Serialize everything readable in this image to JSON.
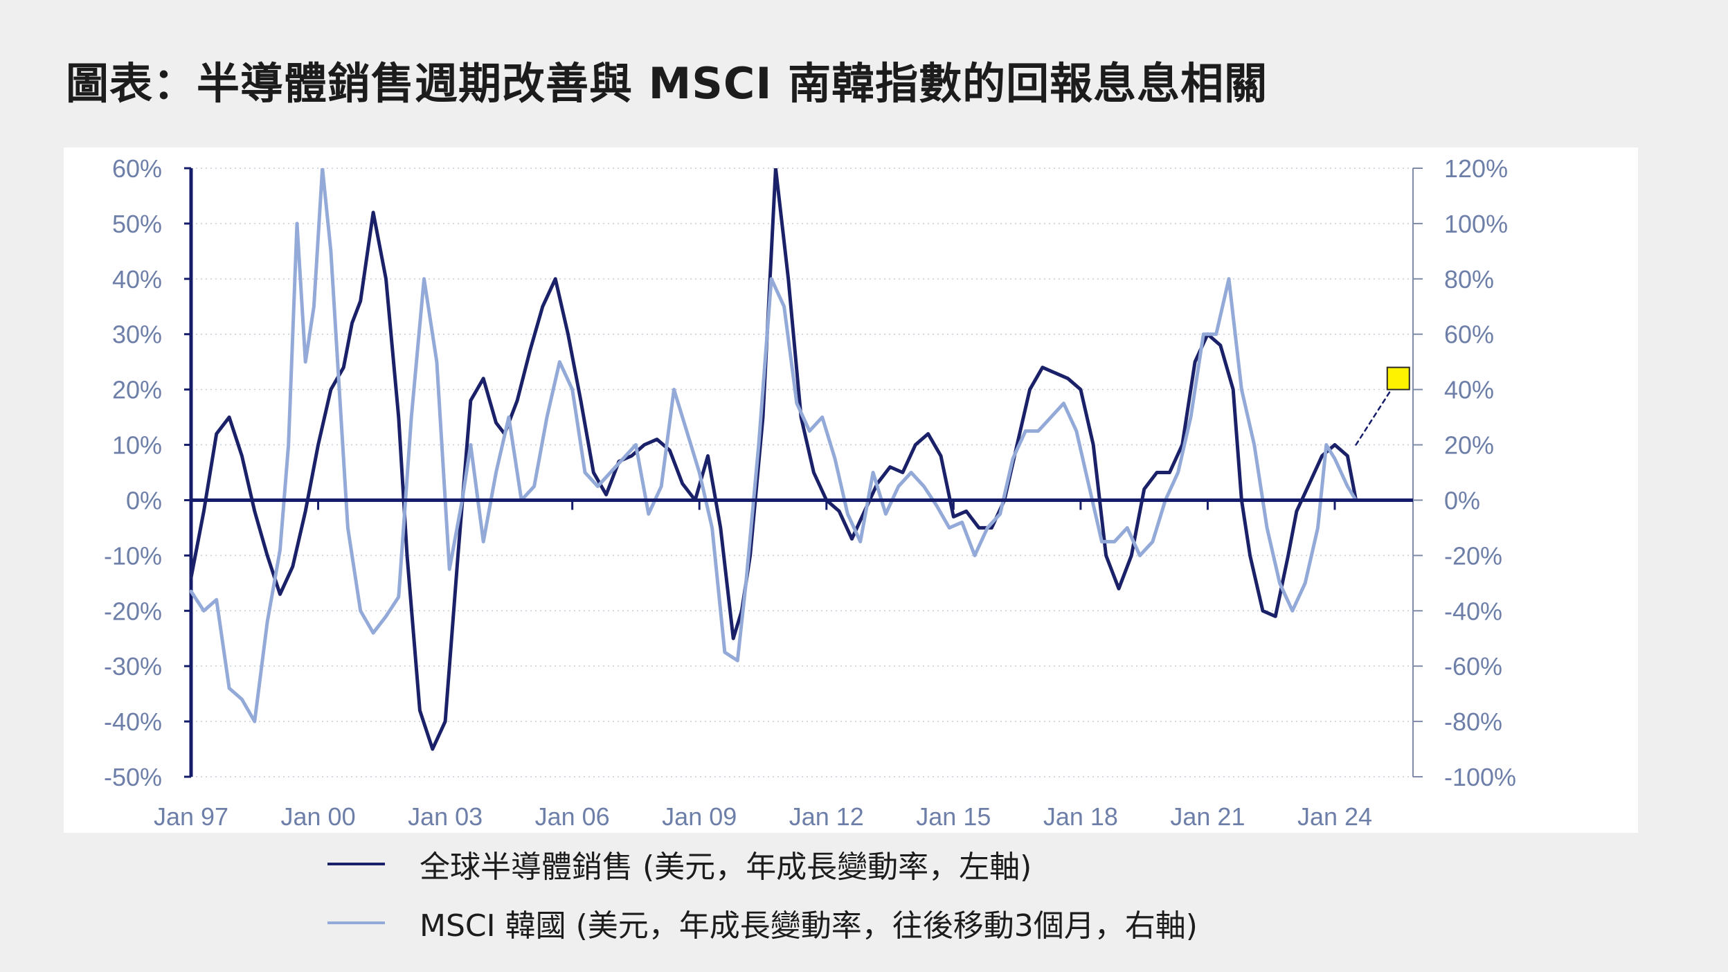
{
  "title": "圖表：半導體銷售週期改善與 MSCI 南韓指數的回報息息相關",
  "colors": {
    "semiconductor": "#1a2168",
    "korea": "#93a9d8",
    "forecast_marker": "#fff200",
    "axis_text": "#6d7fa8",
    "zero_line": "#151d6b"
  },
  "legend": {
    "semiconductor": "全球半導體銷售 (美元，年成長變動率，左軸)",
    "korea": "MSCI 韓國 (美元，年成長變動率，往後移動3個月，右軸)"
  },
  "chart_data": {
    "type": "line",
    "x_ticks": [
      "Jan 97",
      "Jan 00",
      "Jan 03",
      "Jan 06",
      "Jan 09",
      "Jan 12",
      "Jan 15",
      "Jan 18",
      "Jan 21",
      "Jan 24"
    ],
    "y_left": {
      "ticks": [
        "60%",
        "50%",
        "40%",
        "30%",
        "20%",
        "10%",
        "0%",
        "-10%",
        "-20%",
        "-30%",
        "-40%",
        "-50%"
      ],
      "range": [
        -50,
        60
      ]
    },
    "y_right": {
      "ticks": [
        "120%",
        "100%",
        "80%",
        "60%",
        "40%",
        "20%",
        "0%",
        "-20%",
        "-40%",
        "-60%",
        "-80%",
        "-100%"
      ],
      "range": [
        -100,
        120
      ]
    },
    "grid": "horizontal dotted",
    "series": [
      {
        "name": "全球半導體銷售 (美元，年成長變動率，左軸)",
        "axis": "left",
        "x": [
          1997.0,
          1997.3,
          1997.6,
          1997.9,
          1998.2,
          1998.5,
          1998.8,
          1999.1,
          1999.4,
          1999.7,
          2000.0,
          2000.3,
          2000.6,
          2000.8,
          2001.0,
          2001.3,
          2001.6,
          2001.9,
          2002.1,
          2002.4,
          2002.7,
          2003.0,
          2003.3,
          2003.6,
          2003.9,
          2004.2,
          2004.4,
          2004.7,
          2005.0,
          2005.3,
          2005.6,
          2005.9,
          2006.2,
          2006.5,
          2006.8,
          2007.1,
          2007.4,
          2007.7,
          2008.0,
          2008.3,
          2008.6,
          2008.9,
          2009.2,
          2009.5,
          2009.8,
          2010.0,
          2010.2,
          2010.5,
          2010.8,
          2011.1,
          2011.4,
          2011.7,
          2012.0,
          2012.3,
          2012.6,
          2012.9,
          2013.2,
          2013.5,
          2013.8,
          2014.1,
          2014.4,
          2014.7,
          2015.0,
          2015.3,
          2015.6,
          2015.9,
          2016.2,
          2016.5,
          2016.8,
          2017.1,
          2017.4,
          2017.7,
          2018.0,
          2018.3,
          2018.6,
          2018.9,
          2019.2,
          2019.5,
          2019.8,
          2020.1,
          2020.4,
          2020.7,
          2021.0,
          2021.3,
          2021.6,
          2021.8,
          2022.0,
          2022.3,
          2022.6,
          2022.9,
          2023.1,
          2023.4,
          2023.7,
          2024.0,
          2024.3,
          2024.5
        ],
        "values": [
          -14,
          -2,
          12,
          15,
          8,
          -2,
          -10,
          -17,
          -12,
          -2,
          10,
          20,
          24,
          32,
          36,
          52,
          40,
          15,
          -10,
          -38,
          -45,
          -40,
          -10,
          18,
          22,
          14,
          12,
          18,
          27,
          35,
          40,
          30,
          18,
          5,
          1,
          7,
          8,
          10,
          11,
          9,
          3,
          0,
          8,
          -5,
          -25,
          -20,
          -10,
          15,
          60,
          40,
          15,
          5,
          0,
          -2,
          -7,
          -2,
          3,
          6,
          5,
          10,
          12,
          8,
          -3,
          -2,
          -5,
          -5,
          0,
          10,
          20,
          24,
          23,
          22,
          20,
          10,
          -10,
          -16,
          -10,
          2,
          5,
          5,
          10,
          25,
          30,
          28,
          20,
          0,
          -10,
          -20,
          -21,
          -10,
          -2,
          3,
          8,
          10,
          8,
          0
        ],
        "pattern": "solid"
      },
      {
        "name": "MSCI 韓國 (美元，年成長變動率，往後移動3個月，右軸)",
        "axis": "right",
        "x": [
          1997.0,
          1997.3,
          1997.6,
          1997.9,
          1998.2,
          1998.5,
          1998.8,
          1999.1,
          1999.3,
          1999.5,
          1999.7,
          1999.9,
          2000.1,
          2000.3,
          2000.5,
          2000.7,
          2001.0,
          2001.3,
          2001.6,
          2001.9,
          2002.2,
          2002.5,
          2002.8,
          2003.1,
          2003.4,
          2003.6,
          2003.9,
          2004.2,
          2004.5,
          2004.8,
          2005.1,
          2005.4,
          2005.7,
          2006.0,
          2006.3,
          2006.6,
          2006.9,
          2007.2,
          2007.5,
          2007.8,
          2008.1,
          2008.4,
          2008.7,
          2009.0,
          2009.3,
          2009.6,
          2009.9,
          2010.1,
          2010.4,
          2010.7,
          2011.0,
          2011.3,
          2011.6,
          2011.9,
          2012.2,
          2012.5,
          2012.8,
          2013.1,
          2013.4,
          2013.7,
          2014.0,
          2014.3,
          2014.6,
          2014.9,
          2015.2,
          2015.5,
          2015.8,
          2016.1,
          2016.4,
          2016.7,
          2017.0,
          2017.3,
          2017.6,
          2017.9,
          2018.2,
          2018.5,
          2018.8,
          2019.1,
          2019.4,
          2019.7,
          2020.0,
          2020.3,
          2020.6,
          2020.9,
          2021.2,
          2021.5,
          2021.8,
          2022.1,
          2022.4,
          2022.7,
          2023.0,
          2023.3,
          2023.6,
          2023.8,
          2024.0,
          2024.3,
          2024.5
        ],
        "values": [
          -33,
          -40,
          -36,
          -68,
          -72,
          -80,
          -44,
          -18,
          20,
          100,
          50,
          70,
          120,
          90,
          40,
          -10,
          -40,
          -48,
          -42,
          -35,
          30,
          80,
          50,
          -25,
          0,
          20,
          -15,
          10,
          30,
          0,
          5,
          30,
          50,
          40,
          10,
          5,
          10,
          15,
          20,
          -5,
          5,
          40,
          25,
          10,
          -10,
          -55,
          -58,
          -30,
          20,
          80,
          70,
          35,
          25,
          30,
          15,
          -5,
          -15,
          10,
          -5,
          5,
          10,
          5,
          -2,
          -10,
          -8,
          -20,
          -10,
          -5,
          15,
          25,
          25,
          30,
          35,
          25,
          5,
          -15,
          -15,
          -10,
          -20,
          -15,
          0,
          10,
          30,
          60,
          60,
          80,
          40,
          20,
          -10,
          -30,
          -40,
          -30,
          -10,
          20,
          15,
          5,
          0
        ],
        "pattern": "solid"
      },
      {
        "name": "",
        "axis": "right",
        "x": [
          2024.5,
          2025.5
        ],
        "values": [
          20,
          44
        ],
        "pattern": "dashed",
        "marker": "square"
      }
    ]
  }
}
